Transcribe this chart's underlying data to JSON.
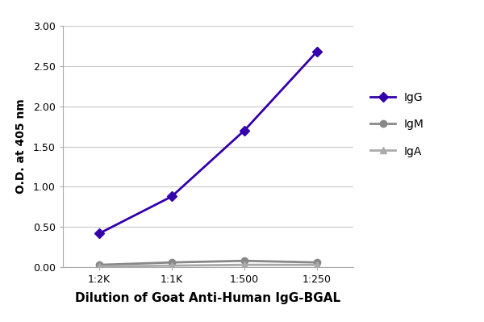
{
  "x_labels": [
    "1:2K",
    "1:1K",
    "1:500",
    "1:250"
  ],
  "x_positions": [
    0,
    1,
    2,
    3
  ],
  "IgG_values": [
    0.42,
    0.88,
    1.7,
    2.68
  ],
  "IgM_values": [
    0.03,
    0.06,
    0.08,
    0.06
  ],
  "IgA_values": [
    0.01,
    0.02,
    0.03,
    0.03
  ],
  "IgG_color": "#3300aa",
  "IgM_color": "#888888",
  "IgA_color": "#aaaaaa",
  "ylabel": "O.D. at 405 nm",
  "xlabel": "Dilution of Goat Anti-Human IgG-BGAL",
  "ylim": [
    0.0,
    3.0
  ],
  "yticks": [
    0.0,
    0.5,
    1.0,
    1.5,
    2.0,
    2.5,
    3.0
  ],
  "background_color": "#ffffff",
  "plot_bg_color": "#ffffff",
  "grid_color": "#c8c8c8",
  "legend_labels": [
    "IgG",
    "IgM",
    "IgA"
  ],
  "spine_color": "#aaaaaa",
  "tick_fontsize": 9,
  "label_fontsize": 10,
  "xlabel_fontsize": 11
}
